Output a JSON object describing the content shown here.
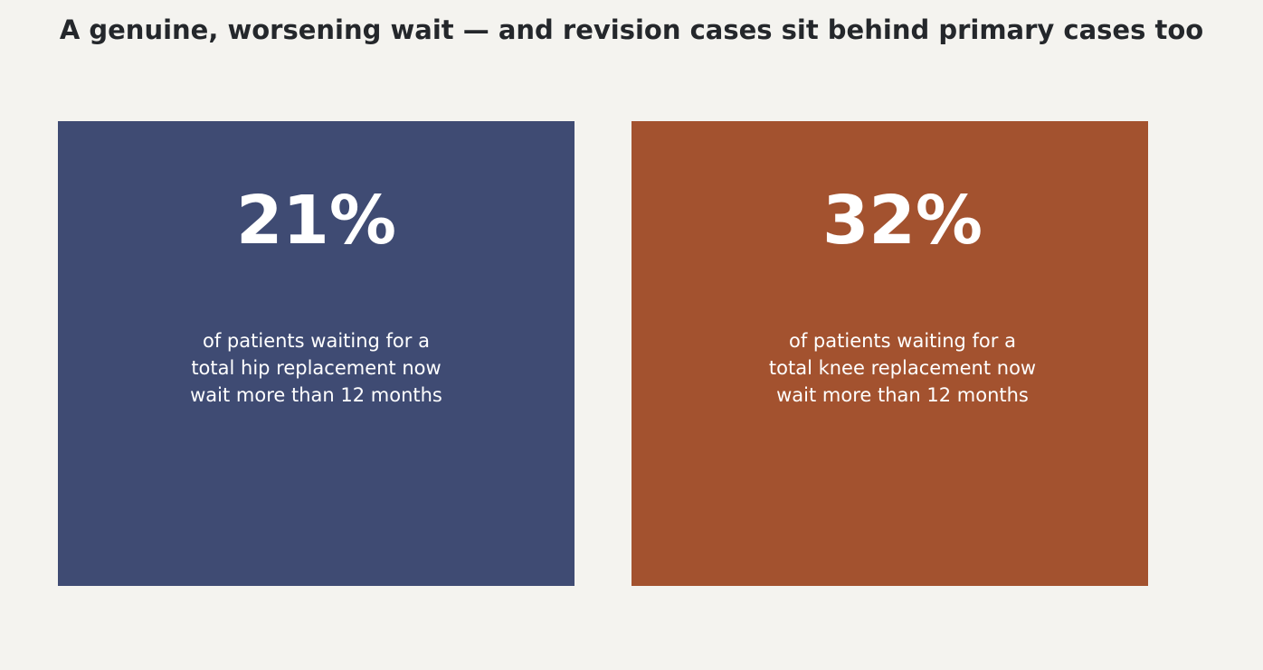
{
  "title": "A genuine, worsening wait — and revision cases sit behind primary cases too",
  "chart_data": {
    "type": "table",
    "title": "A genuine, worsening wait — and revision cases sit behind primary cases too",
    "cards": [
      {
        "value": 21,
        "value_label": "21%",
        "caption_lines": [
          "of patients waiting for a",
          "total hip replacement now",
          "wait more than 12 months"
        ],
        "color": "#3f4b73"
      },
      {
        "value": 32,
        "value_label": "32%",
        "caption_lines": [
          "of patients waiting for a",
          "total knee replacement now",
          "wait more than 12 months"
        ],
        "color": "#a3522f"
      }
    ]
  },
  "colors": {
    "background": "#f4f3ef",
    "title_text": "#24272b",
    "card_text": "#ffffff"
  }
}
